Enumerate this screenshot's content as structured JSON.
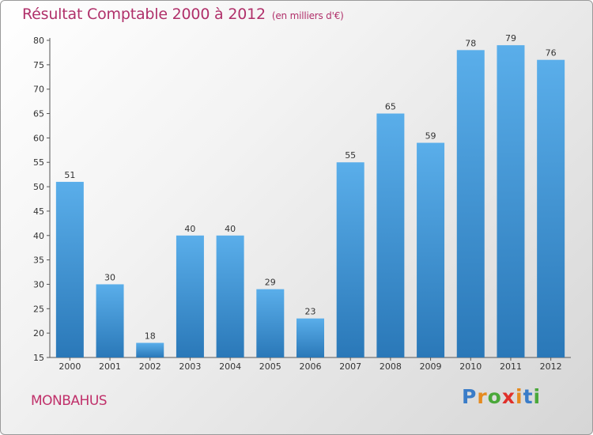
{
  "header": {
    "title": "Résultat Comptable 2000 à 2012",
    "subtitle": "(en milliers d'€)"
  },
  "footer": {
    "commune": "MONBAHUS",
    "logo": "Proxiti"
  },
  "colors": {
    "title": "#b0306a",
    "bar_top": "#5aaeea",
    "bar_bottom": "#2a78b8",
    "logo_letters": [
      "#3a7cc8",
      "#e58a1f",
      "#4aa83a",
      "#e0302a",
      "#e58a1f",
      "#3a7cc8",
      "#4aa83a"
    ]
  },
  "chart_data": {
    "type": "bar",
    "categories": [
      "2000",
      "2001",
      "2002",
      "2003",
      "2004",
      "2005",
      "2006",
      "2007",
      "2008",
      "2009",
      "2010",
      "2011",
      "2012"
    ],
    "values": [
      51,
      30,
      18,
      40,
      40,
      29,
      23,
      55,
      65,
      59,
      78,
      79,
      76
    ],
    "yticks": [
      15,
      20,
      25,
      30,
      35,
      40,
      45,
      50,
      55,
      60,
      65,
      70,
      75,
      80
    ],
    "ylim": [
      15,
      80
    ],
    "grid": false
  }
}
